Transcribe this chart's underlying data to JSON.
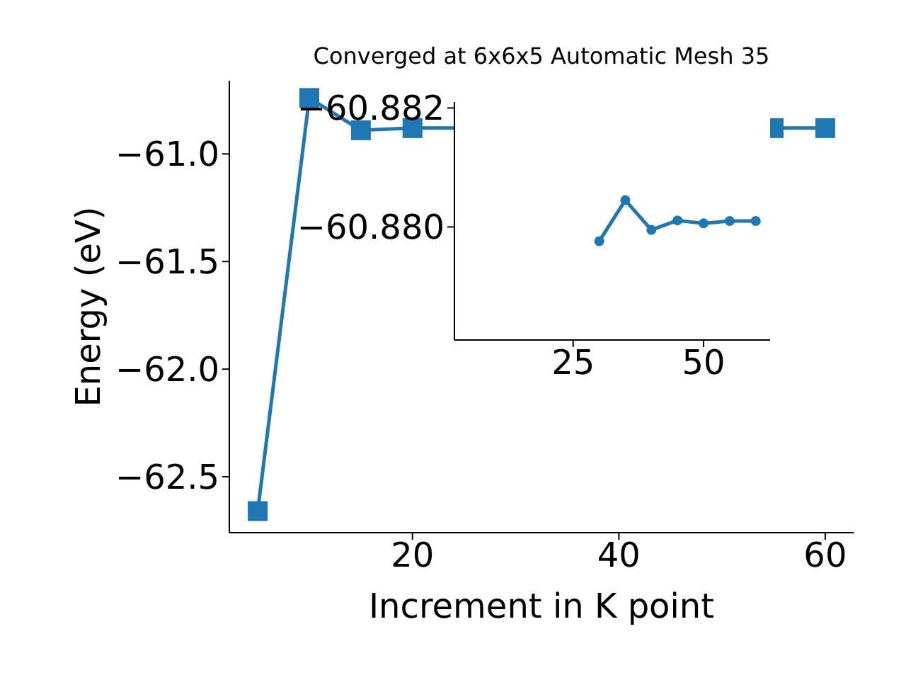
{
  "chart_data": [
    {
      "type": "line",
      "title": "Converged at 6x6x5 Automatic Mesh 35",
      "xlabel": "Increment in K point",
      "ylabel": "Energy (eV)",
      "x": [
        5,
        10,
        15,
        20,
        25,
        30,
        35,
        40,
        45,
        50,
        55,
        60
      ],
      "series": [
        {
          "color": "#1f77b4",
          "values": [
            -62.66,
            -60.74,
            -60.89,
            -60.88,
            null,
            null,
            null,
            null,
            null,
            null,
            -60.88,
            -60.88
          ]
        }
      ],
      "xlim": [
        2.25,
        62.75
      ],
      "xticks": [
        20,
        40,
        60
      ],
      "ylim": [
        -62.76,
        -60.66
      ],
      "yticks": [
        {
          "value": -61.0,
          "label": "−61.0"
        },
        {
          "value": -61.5,
          "label": "−61.5"
        },
        {
          "value": -62.0,
          "label": "−62.0"
        },
        {
          "value": -62.5,
          "label": "−62.5"
        }
      ],
      "marker": "square",
      "grid": false,
      "legend": false
    },
    {
      "type": "line",
      "x": [
        30,
        35,
        40,
        45,
        50,
        55,
        60
      ],
      "series": [
        {
          "color": "#1f77b4",
          "values": [
            -60.87976,
            -60.88045,
            -60.87995,
            -60.88011,
            -60.88006,
            -60.8801,
            -60.8801
          ]
        }
      ],
      "xlim": [
        2.25,
        62.75
      ],
      "xticks": [
        25,
        50
      ],
      "ylim": [
        -60.8781,
        -60.8821
      ],
      "yticks": [
        {
          "value": -60.882,
          "label": "−60.882"
        },
        {
          "value": -60.88,
          "label": "−60.880"
        }
      ],
      "marker": "circle",
      "grid": false,
      "legend": false
    }
  ]
}
